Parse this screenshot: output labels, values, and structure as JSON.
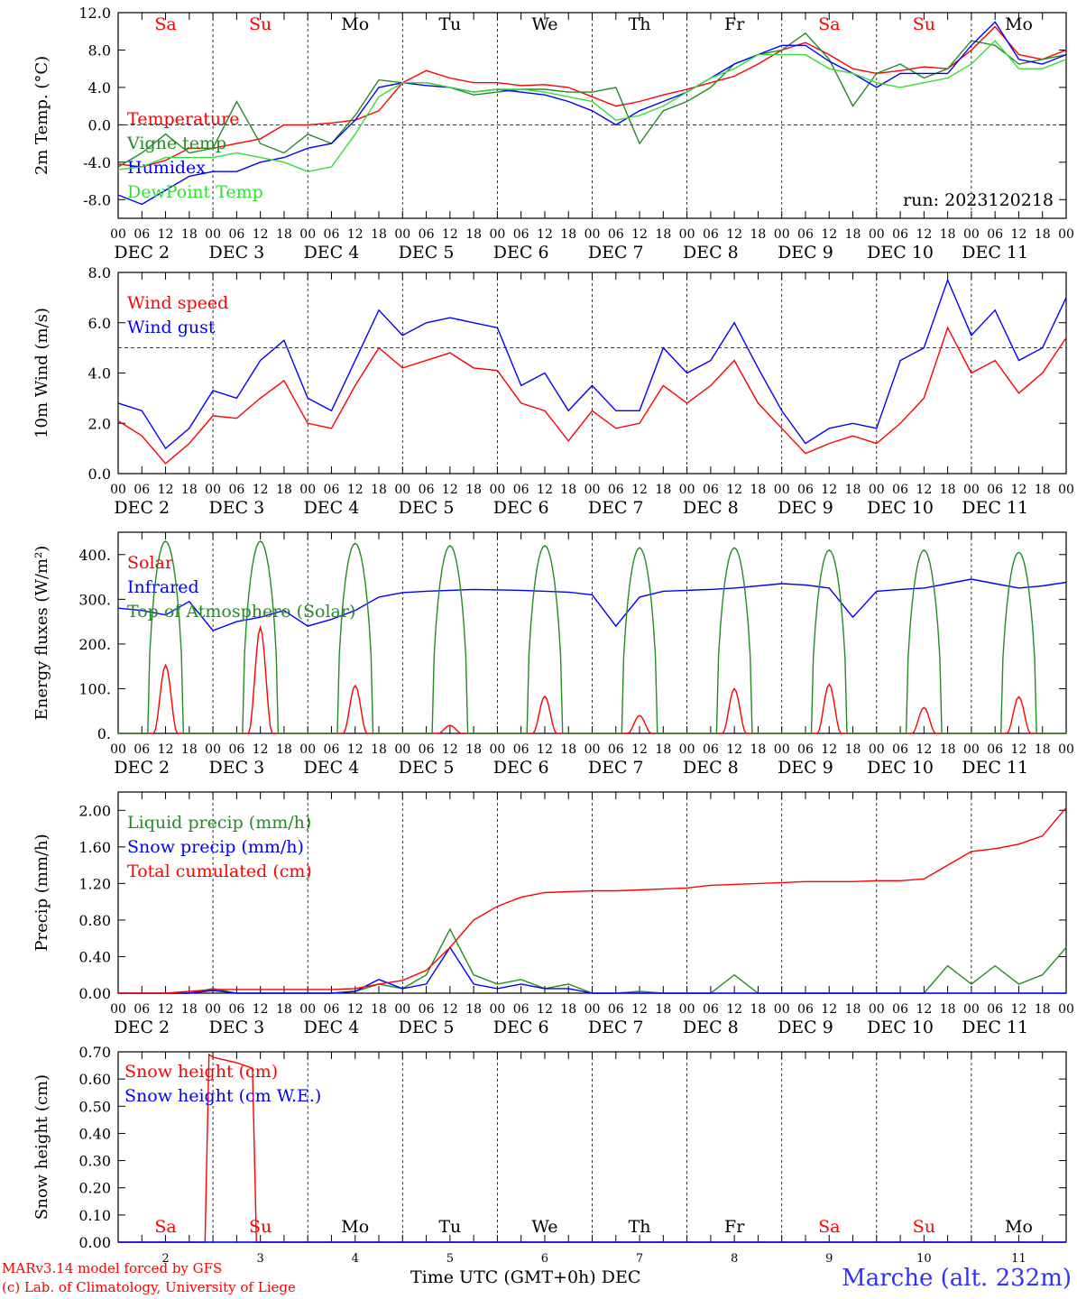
{
  "footer": {
    "model": "MARv3.14 model forced by GFS",
    "credit": "(c) Lab. of Climatology, University of Liege",
    "station": "Marche (alt. 232m)",
    "xlabel": "Time UTC (GMT+0h) DEC"
  },
  "chart_data": [
    {
      "type": "line",
      "ylabel": "2m Temp. (°C)",
      "ylim": [
        -10,
        12
      ],
      "yticks": [
        -8,
        -4,
        0,
        4,
        8,
        12
      ],
      "ytick_labels": [
        "-8.0",
        "-4.0",
        "0.0",
        "4.0",
        "8.0",
        "12.0"
      ],
      "dashed_ref": 0,
      "annotation": "run: 2023120218",
      "day_names": [
        "Sa",
        "Su",
        "Mo",
        "Tu",
        "We",
        "Th",
        "Fr",
        "Sa",
        "Su",
        "Mo"
      ],
      "day_colors": [
        "#ff0000",
        "#ff0000",
        "#000000",
        "#000000",
        "#000000",
        "#000000",
        "#000000",
        "#ff0000",
        "#ff0000",
        "#000000"
      ],
      "x_hours": [
        0,
        6,
        12,
        18,
        24,
        30,
        36,
        42,
        48,
        54,
        60,
        66,
        72,
        78,
        84,
        90,
        96,
        102,
        108,
        114,
        120,
        126,
        132,
        138,
        144,
        150,
        156,
        162,
        168,
        174,
        180,
        186,
        192,
        198,
        204,
        210,
        216,
        222,
        228,
        234,
        240
      ],
      "series": [
        {
          "name": "Temperature",
          "color": "#ff0000",
          "values": [
            -4.2,
            -4.5,
            -3.8,
            -2.5,
            -2.5,
            -2.0,
            -1.5,
            0.0,
            0.0,
            0.2,
            0.5,
            1.5,
            4.5,
            5.8,
            5.0,
            4.5,
            4.5,
            4.2,
            4.3,
            4.0,
            3.0,
            2.0,
            2.5,
            3.2,
            3.8,
            4.5,
            5.2,
            6.5,
            8.0,
            8.8,
            7.5,
            6.0,
            5.5,
            5.8,
            6.2,
            6.0,
            8.0,
            10.5,
            7.5,
            7.0,
            8.0
          ]
        },
        {
          "name": "Vigne temp",
          "color": "#228b22",
          "values": [
            -4.5,
            -3.0,
            -1.0,
            -3.0,
            -2.5,
            2.5,
            -2.0,
            -3.0,
            -1.0,
            -2.0,
            1.0,
            4.8,
            4.5,
            4.5,
            4.0,
            3.2,
            3.5,
            3.8,
            3.8,
            3.5,
            3.5,
            4.0,
            -2.0,
            1.5,
            2.5,
            4.0,
            6.5,
            7.5,
            8.0,
            9.8,
            7.0,
            2.0,
            5.5,
            6.5,
            5.0,
            6.0,
            9.0,
            8.5,
            6.5,
            7.0,
            7.5
          ]
        },
        {
          "name": "Humidex",
          "color": "#0000ff",
          "values": [
            -7.5,
            -8.5,
            -7.0,
            -5.5,
            -5.0,
            -5.0,
            -4.0,
            -3.5,
            -2.5,
            -2.0,
            0.5,
            4.0,
            4.5,
            4.2,
            4.0,
            3.5,
            3.8,
            3.5,
            3.2,
            2.5,
            1.5,
            0.0,
            1.5,
            2.5,
            3.5,
            5.0,
            6.5,
            7.5,
            8.5,
            8.5,
            6.8,
            5.5,
            4.0,
            5.5,
            5.5,
            5.5,
            8.5,
            11.0,
            7.0,
            6.5,
            7.5
          ]
        },
        {
          "name": "DewPoint Temp",
          "color": "#33dd33",
          "values": [
            -4.8,
            -4.5,
            -3.5,
            -3.5,
            -3.5,
            -3.0,
            -3.5,
            -4.0,
            -5.0,
            -4.5,
            -1.0,
            3.0,
            4.5,
            4.5,
            4.0,
            3.5,
            3.8,
            3.8,
            3.5,
            3.0,
            2.5,
            0.5,
            1.0,
            2.0,
            3.5,
            5.0,
            6.0,
            7.5,
            7.5,
            7.5,
            6.0,
            5.5,
            4.5,
            4.0,
            4.5,
            5.0,
            6.5,
            9.0,
            6.0,
            6.0,
            7.0
          ]
        }
      ],
      "day_labels": [
        "DEC  2",
        "DEC  3",
        "DEC  4",
        "DEC  5",
        "DEC  6",
        "DEC  7",
        "DEC  8",
        "DEC  9",
        "DEC 10",
        "DEC 11"
      ],
      "hour_labels": [
        "00",
        "06",
        "12",
        "18"
      ]
    },
    {
      "type": "line",
      "ylabel": "10m Wind (m/s)",
      "ylim": [
        0,
        8
      ],
      "yticks": [
        0,
        2,
        4,
        6,
        8
      ],
      "ytick_labels": [
        "0.0",
        "2.0",
        "4.0",
        "6.0",
        "8.0"
      ],
      "dashed_ref": 5,
      "x_hours": [
        0,
        6,
        12,
        18,
        24,
        30,
        36,
        42,
        48,
        54,
        60,
        66,
        72,
        78,
        84,
        90,
        96,
        102,
        108,
        114,
        120,
        126,
        132,
        138,
        144,
        150,
        156,
        162,
        168,
        174,
        180,
        186,
        192,
        198,
        204,
        210,
        216,
        222,
        228,
        234,
        240
      ],
      "series": [
        {
          "name": "Wind speed",
          "color": "#ff0000",
          "values": [
            2.1,
            1.5,
            0.4,
            1.2,
            2.3,
            2.2,
            3.0,
            3.7,
            2.0,
            1.8,
            3.5,
            5.0,
            4.2,
            4.5,
            4.8,
            4.2,
            4.1,
            2.8,
            2.5,
            1.3,
            2.5,
            1.8,
            2.0,
            3.5,
            2.8,
            3.5,
            4.5,
            2.8,
            1.8,
            0.8,
            1.2,
            1.5,
            1.2,
            2.0,
            3.0,
            5.8,
            4.0,
            4.5,
            3.2,
            4.0,
            5.4
          ]
        },
        {
          "name": "Wind gust",
          "color": "#0000ff",
          "values": [
            2.8,
            2.5,
            1.0,
            1.8,
            3.3,
            3.0,
            4.5,
            5.3,
            3.0,
            2.5,
            4.5,
            6.5,
            5.5,
            6.0,
            6.2,
            6.0,
            5.8,
            3.5,
            4.0,
            2.5,
            3.5,
            2.5,
            2.5,
            5.0,
            4.0,
            4.5,
            6.0,
            4.2,
            2.5,
            1.2,
            1.8,
            2.0,
            1.8,
            4.5,
            5.0,
            7.7,
            5.5,
            6.5,
            4.5,
            5.0,
            7.0
          ]
        }
      ]
    },
    {
      "type": "line",
      "ylabel": "Energy fluxes (W/m²)",
      "ylim": [
        0,
        450
      ],
      "yticks": [
        0,
        100,
        200,
        300,
        400
      ],
      "ytick_labels": [
        "0.",
        "100.",
        "200.",
        "300.",
        "400."
      ],
      "series": [
        {
          "name": "Solar",
          "color": "#ff0000",
          "daily_peaks": [
            153,
            237,
            107,
            18,
            83,
            40,
            100,
            110,
            58,
            82
          ]
        },
        {
          "name": "Infrared",
          "color": "#0000ff",
          "x_hours": [
            0,
            6,
            12,
            18,
            24,
            30,
            36,
            42,
            48,
            54,
            60,
            66,
            72,
            78,
            84,
            90,
            96,
            102,
            108,
            114,
            120,
            126,
            132,
            138,
            144,
            150,
            156,
            162,
            168,
            174,
            180,
            186,
            192,
            198,
            204,
            210,
            216,
            222,
            228,
            234,
            240
          ],
          "values": [
            280,
            275,
            265,
            295,
            230,
            250,
            260,
            275,
            240,
            255,
            275,
            305,
            315,
            318,
            320,
            322,
            321,
            320,
            318,
            316,
            310,
            240,
            305,
            318,
            320,
            322,
            325,
            330,
            335,
            332,
            325,
            260,
            318,
            322,
            325,
            335,
            345,
            335,
            325,
            330,
            338
          ]
        },
        {
          "name": "Top of Atmosphere (Solar)",
          "color": "#228b22",
          "daily_peaks": [
            430,
            430,
            425,
            420,
            420,
            415,
            415,
            410,
            410,
            405
          ]
        }
      ]
    },
    {
      "type": "line",
      "ylabel": "Precip (mm/h)",
      "ylim": [
        0,
        2.2
      ],
      "yticks": [
        0,
        0.4,
        0.8,
        1.2,
        1.6,
        2.0
      ],
      "ytick_labels": [
        "0.00",
        "0.40",
        "0.80",
        "1.20",
        "1.60",
        "2.00"
      ],
      "x_hours": [
        0,
        6,
        12,
        18,
        24,
        30,
        36,
        42,
        48,
        54,
        60,
        66,
        72,
        78,
        84,
        90,
        96,
        102,
        108,
        114,
        120,
        126,
        132,
        138,
        144,
        150,
        156,
        162,
        168,
        174,
        180,
        186,
        192,
        198,
        204,
        210,
        216,
        222,
        228,
        234,
        240
      ],
      "series": [
        {
          "name": "Liquid precip (mm/h)",
          "color": "#228b22",
          "values": [
            0,
            0,
            0,
            0,
            0.05,
            0,
            0,
            0,
            0,
            0,
            0.02,
            0.1,
            0.05,
            0.2,
            0.7,
            0.2,
            0.1,
            0.15,
            0.05,
            0.1,
            0,
            0,
            0.02,
            0,
            0,
            0,
            0.2,
            0,
            0,
            0,
            0,
            0,
            0,
            0,
            0,
            0.3,
            0.1,
            0.3,
            0.1,
            0.2,
            0.5
          ]
        },
        {
          "name": "Snow precip (mm/h)",
          "color": "#0000ff",
          "values": [
            0,
            0,
            0,
            0,
            0.03,
            0,
            0,
            0,
            0,
            0,
            0.02,
            0.15,
            0.05,
            0.1,
            0.5,
            0.1,
            0.05,
            0.1,
            0.05,
            0.05,
            0,
            0,
            0,
            0,
            0,
            0,
            0,
            0,
            0,
            0,
            0,
            0,
            0,
            0,
            0,
            0,
            0,
            0,
            0,
            0,
            0
          ]
        },
        {
          "name": "Total cumulated (cm)",
          "color": "#ff0000",
          "values": [
            0,
            0,
            0,
            0.02,
            0.04,
            0.04,
            0.04,
            0.04,
            0.04,
            0.04,
            0.05,
            0.1,
            0.14,
            0.25,
            0.5,
            0.8,
            0.95,
            1.05,
            1.1,
            1.11,
            1.12,
            1.12,
            1.13,
            1.14,
            1.15,
            1.18,
            1.19,
            1.2,
            1.21,
            1.22,
            1.22,
            1.22,
            1.23,
            1.23,
            1.25,
            1.4,
            1.55,
            1.58,
            1.63,
            1.72,
            2.03
          ]
        }
      ]
    },
    {
      "type": "line",
      "ylabel": "Snow height (cm)",
      "ylim": [
        0,
        0.7
      ],
      "yticks": [
        0,
        0.1,
        0.2,
        0.3,
        0.4,
        0.5,
        0.6,
        0.7
      ],
      "ytick_labels": [
        "0.00",
        "0.10",
        "0.20",
        "0.30",
        "0.40",
        "0.50",
        "0.60",
        "0.70"
      ],
      "series": [
        {
          "name": "Snow height (cm)",
          "color": "#ff0000",
          "x_hours": [
            0,
            22,
            23,
            24,
            30,
            34,
            35,
            36,
            240
          ],
          "values": [
            0,
            0,
            0.69,
            0.68,
            0.66,
            0.64,
            0,
            0,
            0
          ]
        },
        {
          "name": "Snow height (cm W.E.)",
          "color": "#0000ff",
          "x_hours": [
            0,
            240
          ],
          "values": [
            0,
            0
          ]
        }
      ],
      "bottom_day_names": [
        "Sa",
        "Su",
        "Mo",
        "Tu",
        "We",
        "Th",
        "Fr",
        "Sa",
        "Su",
        "Mo"
      ],
      "bottom_day_numbers": [
        "2",
        "3",
        "4",
        "5",
        "6",
        "7",
        "8",
        "9",
        "10",
        "11"
      ]
    }
  ]
}
